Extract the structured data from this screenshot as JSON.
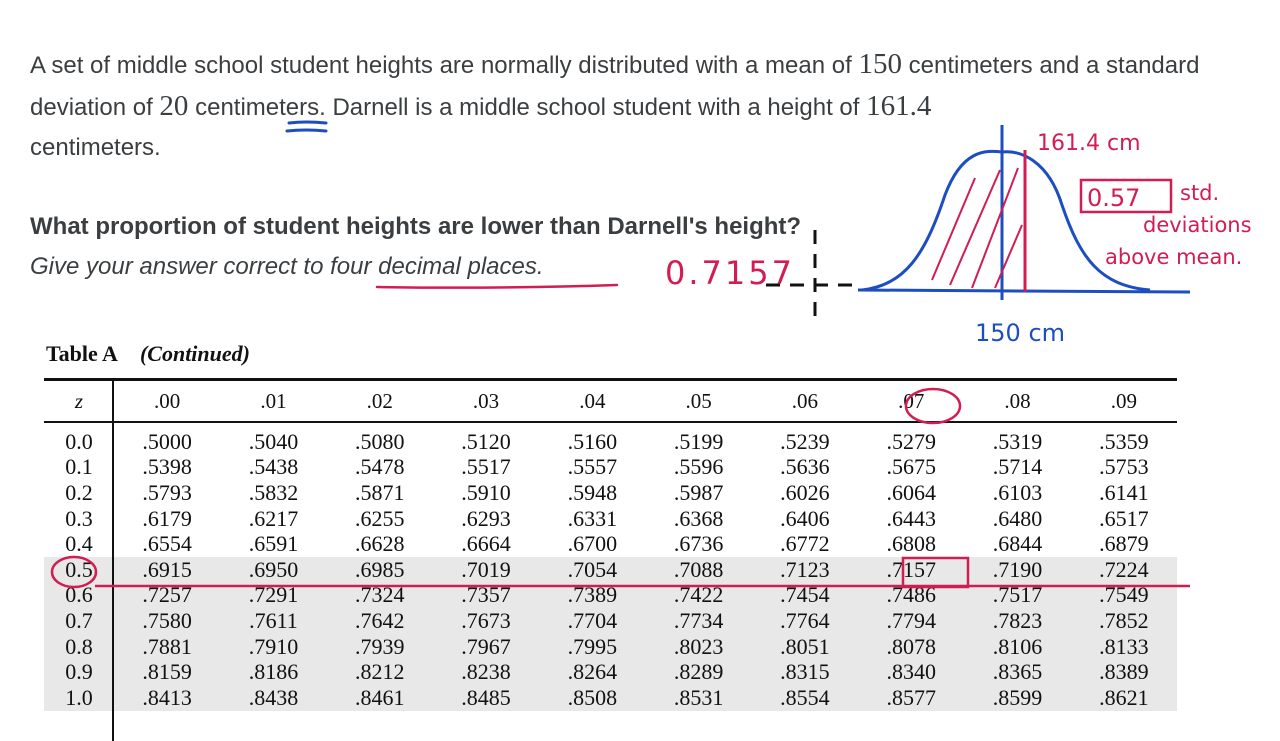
{
  "problem": {
    "p1": "A set of middle school student heights are normally distributed with a mean of ",
    "mean": "150",
    "p2": " centimeters and a standard deviation of ",
    "sd": "20",
    "p3": " centimeters. Darnell is a middle school student with a height of ",
    "height": "161.4",
    "p4": " centimeters."
  },
  "question": {
    "text": "What proportion of student heights are lower than Darnell's height?",
    "instruction": "Give your answer correct to four decimal places."
  },
  "table": {
    "title": "Table A",
    "continued": "(Continued)",
    "z_header": "z",
    "columns": [
      ".00",
      ".01",
      ".02",
      ".03",
      ".04",
      ".05",
      ".06",
      ".07",
      ".08",
      ".09"
    ],
    "rows": [
      {
        "z": "0.0",
        "v": [
          ".5000",
          ".5040",
          ".5080",
          ".5120",
          ".5160",
          ".5199",
          ".5239",
          ".5279",
          ".5319",
          ".5359"
        ]
      },
      {
        "z": "0.1",
        "v": [
          ".5398",
          ".5438",
          ".5478",
          ".5517",
          ".5557",
          ".5596",
          ".5636",
          ".5675",
          ".5714",
          ".5753"
        ]
      },
      {
        "z": "0.2",
        "v": [
          ".5793",
          ".5832",
          ".5871",
          ".5910",
          ".5948",
          ".5987",
          ".6026",
          ".6064",
          ".6103",
          ".6141"
        ]
      },
      {
        "z": "0.3",
        "v": [
          ".6179",
          ".6217",
          ".6255",
          ".6293",
          ".6331",
          ".6368",
          ".6406",
          ".6443",
          ".6480",
          ".6517"
        ]
      },
      {
        "z": "0.4",
        "v": [
          ".6554",
          ".6591",
          ".6628",
          ".6664",
          ".6700",
          ".6736",
          ".6772",
          ".6808",
          ".6844",
          ".6879"
        ]
      },
      {
        "z": "0.5",
        "v": [
          ".6915",
          ".6950",
          ".6985",
          ".7019",
          ".7054",
          ".7088",
          ".7123",
          ".7157",
          ".7190",
          ".7224"
        ]
      },
      {
        "z": "0.6",
        "v": [
          ".7257",
          ".7291",
          ".7324",
          ".7357",
          ".7389",
          ".7422",
          ".7454",
          ".7486",
          ".7517",
          ".7549"
        ]
      },
      {
        "z": "0.7",
        "v": [
          ".7580",
          ".7611",
          ".7642",
          ".7673",
          ".7704",
          ".7734",
          ".7764",
          ".7794",
          ".7823",
          ".7852"
        ]
      },
      {
        "z": "0.8",
        "v": [
          ".7881",
          ".7910",
          ".7939",
          ".7967",
          ".7995",
          ".8023",
          ".8051",
          ".8078",
          ".8106",
          ".8133"
        ]
      },
      {
        "z": "0.9",
        "v": [
          ".8159",
          ".8186",
          ".8212",
          ".8238",
          ".8264",
          ".8289",
          ".8315",
          ".8340",
          ".8365",
          ".8389"
        ]
      },
      {
        "z": "1.0",
        "v": [
          ".8413",
          ".8438",
          ".8461",
          ".8485",
          ".8508",
          ".8531",
          ".8554",
          ".8577",
          ".8599",
          ".8621"
        ]
      }
    ]
  },
  "annotations": {
    "answer": "0.7157",
    "height_label": "161.4 cm",
    "mean_label": "150 cm",
    "z_value": "0.57",
    "sd_line1": "std.",
    "sd_line2": "deviations",
    "sd_line3": "above mean.",
    "ink_red": "#d11d53",
    "ink_blue": "#1c4ec2"
  }
}
